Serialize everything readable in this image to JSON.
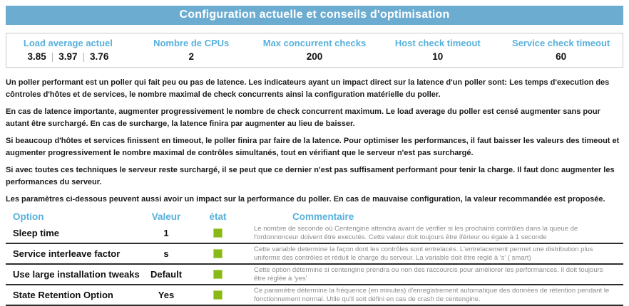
{
  "colors": {
    "accent_blue": "#6cacd1",
    "header_blue": "#57b0dc",
    "status_green": "#88b917"
  },
  "title": "Configuration actuelle et conseils d'optimisation",
  "summary": {
    "pipe": "|",
    "load": {
      "label": "Load average actuel",
      "values": [
        "3.85",
        "3.97",
        "3.76"
      ]
    },
    "cpus": {
      "label": "Nombre de CPUs",
      "value": "2"
    },
    "max_checks": {
      "label": "Max concurrent checks",
      "value": "200"
    },
    "host_timeout": {
      "label": "Host check timeout",
      "value": "10"
    },
    "service_timeout": {
      "label": "Service check timeout",
      "value": "60"
    }
  },
  "paragraphs": [
    "Un poller performant est un poller qui fait peu ou pas de latence. Les indicateurs ayant un impact direct sur la latence d'un poller sont: Les temps d'execution des côntroles d'hôtes et de services, le nombre maximal de check concurrents ainsi la configuration matérielle du poller.",
    "En cas de latence importante, augmenter progressivement le nombre de check concurrent maximum. Le load average du poller est censé augmenter sans pour autant être surchargé. En cas de surcharge, la latence finira par augmenter au lieu de baisser.",
    "Si beaucoup d'hôtes et services finissent en timeout, le poller finira par faire de la latence. Pour optimiser les performances, il faut baisser les valeurs des timeout et augmenter progressivement le nombre maximal de contrôles simultanés, tout en vérifiant que le serveur n'est pas surchargé.",
    "Si avec toutes ces techniques le serveur reste surchargé, il se peut que ce dernier n'est pas suffisament performant pour tenir la charge. Il faut donc augmenter les performances du serveur.",
    "Les paramètres ci-dessous peuvent aussi avoir un impact sur la performance du poller. En cas de mauvaise configuration, la valeur recommandée est proposée."
  ],
  "options_table": {
    "headers": {
      "option": "Option",
      "value": "Valeur",
      "state": "état",
      "comment": "Commentaire"
    },
    "rows": [
      {
        "option": "Sleep time",
        "value": "1",
        "state": "ok",
        "comment": "Le nombre de seconde où Centengine attendra avant de vérifier si les prochains contrôles dans la queue de l'ordonnonceur doivent être executés. Cette valeur doit toujours être iférieur ou égale à 1 seconde"
      },
      {
        "option": "Service interleave factor",
        "value": "s",
        "state": "ok",
        "comment": "Cette variable determine la façon dont les contrôles sont entrelacés. L'entrelacement permet une distribution plus uniforme des contrôles et réduit le charge du serveur. La variable doit être reglé à 's' ( smart)"
      },
      {
        "option": "Use large installation tweaks",
        "value": "Default",
        "state": "ok",
        "comment": "Cette option détermine si centengine prendra ou non des raccourcis pour améliorer les performances. Il doit toujours être réglée à 'yes'"
      },
      {
        "option": "State Retention Option",
        "value": "Yes",
        "state": "ok",
        "comment": "Ce paramètre détermine la fréquence (en minutes) d'enregistrement automatique des données de rétention pendant le fonctionnement normal. Utile qu'il soit défini en cas de crash de centengine."
      }
    ]
  }
}
